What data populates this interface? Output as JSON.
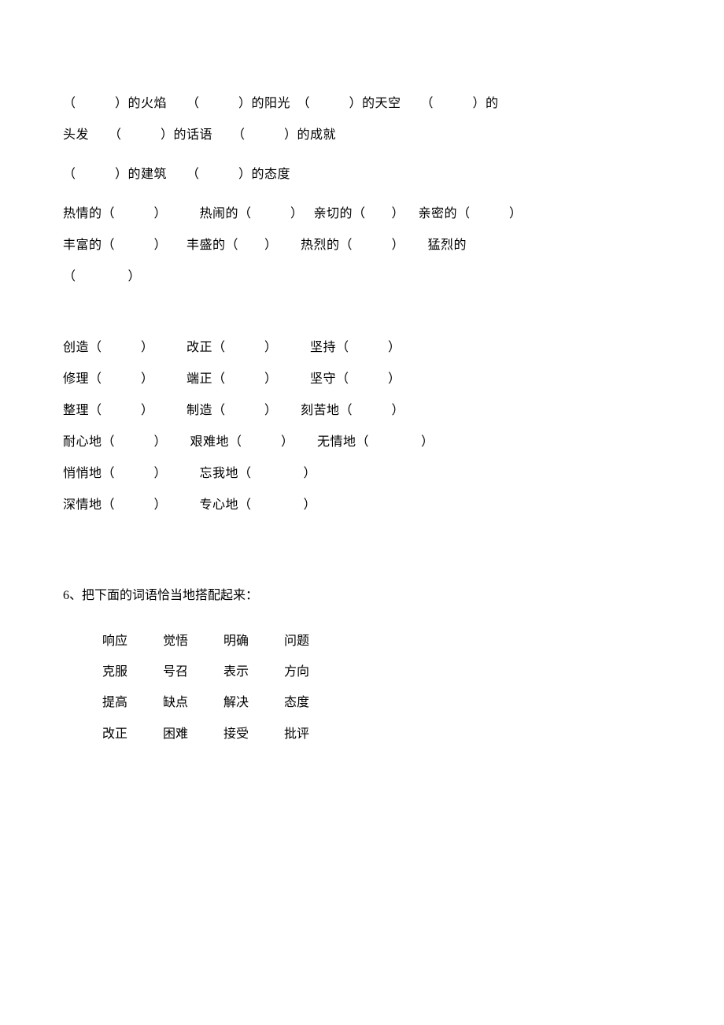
{
  "section1": {
    "line1": "（　　　）的火焰　　（　　　）的阳光　（　　　）的天空　　（　　　）的",
    "line2": "头发　　（　　　）的话语　　（　　　）的成就",
    "line3": "（　　　）的建筑　　（　　　）的态度"
  },
  "section2": {
    "line1": "热情的（　　　）　　　热闹的（　　　）　 亲切的（　　）　  亲密的（　　　）",
    "line2": "丰富的（　　　）　　丰盛的（　　）　　 热烈的（　　　）　　 猛烈的",
    "line3": "（　　　　）"
  },
  "section3": {
    "line1": "创造（　　　）　　　改正（　　　）　　　坚持（　　　）",
    "line2": "修理（　　　）　　　端正（　　　）　　　坚守（　　　）",
    "line3": "整理（　　　）　　　制造（　　　）　　 刻苦地（　　　）",
    "line4": "耐心地（　　　）　　 艰难地（　　　）　　 无情地（　　　　）",
    "line5": "悄悄地（　　　）　　　忘我地（　　　　）",
    "line6": "深情地（　　　）　　　专心地（　　　　）"
  },
  "question6": {
    "title": "6、把下面的词语恰当地搭配起来：",
    "table": {
      "rows": [
        [
          "响应",
          "觉悟",
          "明确",
          "问题"
        ],
        [
          "克服",
          "号召",
          "表示",
          "方向"
        ],
        [
          "提高",
          "缺点",
          "解决",
          "态度"
        ],
        [
          "改正",
          "困难",
          "接受",
          "批评"
        ]
      ]
    }
  },
  "colors": {
    "background": "#ffffff",
    "text": "#000000"
  },
  "typography": {
    "font_family": "SimSun",
    "base_fontsize": 16
  }
}
